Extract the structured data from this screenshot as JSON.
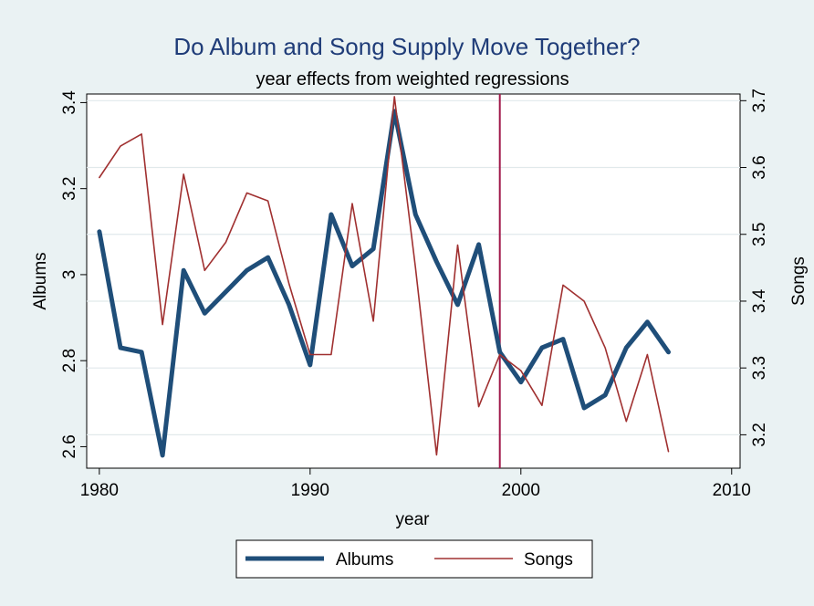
{
  "chart_data": {
    "type": "line",
    "title": "Do Album and Song Supply Move Together?",
    "subtitle": "year effects from weighted regressions",
    "xlabel": "year",
    "ylabel_left": "Albums",
    "ylabel_right": "Songs",
    "xlim": [
      1979.4,
      2010.4
    ],
    "ylim_left": [
      2.55,
      3.42
    ],
    "ylim_right": [
      3.15,
      3.71
    ],
    "x_ticks": [
      1980,
      1990,
      2000,
      2010
    ],
    "y_ticks_left": [
      2.6,
      2.8,
      3,
      3.2,
      3.4
    ],
    "y_ticks_left_labels": [
      "2.6",
      "2.8",
      "3",
      "3.2",
      "3.4"
    ],
    "y_ticks_right": [
      3.2,
      3.3,
      3.4,
      3.5,
      3.6,
      3.7
    ],
    "y_ticks_right_labels": [
      "3.2",
      "3.3",
      "3.4",
      "3.5",
      "3.6",
      "3.7"
    ],
    "grid": "horizontal",
    "reference_line_x": 1999,
    "legend_position": "bottom",
    "x": [
      1980,
      1981,
      1982,
      1983,
      1984,
      1985,
      1986,
      1987,
      1988,
      1989,
      1990,
      1991,
      1992,
      1993,
      1994,
      1995,
      1996,
      1997,
      1998,
      1999,
      2000,
      2001,
      2002,
      2003,
      2004,
      2005,
      2006,
      2007
    ],
    "series": [
      {
        "name": "Albums",
        "axis": "left",
        "color": "#1f4e79",
        "values": [
          3.1,
          2.83,
          2.82,
          2.58,
          3.01,
          2.91,
          2.96,
          3.01,
          3.04,
          2.93,
          2.79,
          3.14,
          3.02,
          3.06,
          3.38,
          3.14,
          3.03,
          2.93,
          3.07,
          2.82,
          2.75,
          2.83,
          2.85,
          2.69,
          2.72,
          2.83,
          2.89,
          2.82
        ]
      },
      {
        "name": "Songs",
        "axis": "right",
        "color": "#a03030",
        "values": [
          3.585,
          3.632,
          3.65,
          3.365,
          3.59,
          3.446,
          3.488,
          3.562,
          3.55,
          3.426,
          3.32,
          3.32,
          3.546,
          3.37,
          3.706,
          3.45,
          3.17,
          3.484,
          3.242,
          3.32,
          3.296,
          3.244,
          3.424,
          3.4,
          3.33,
          3.22,
          3.32,
          3.175
        ]
      }
    ]
  }
}
